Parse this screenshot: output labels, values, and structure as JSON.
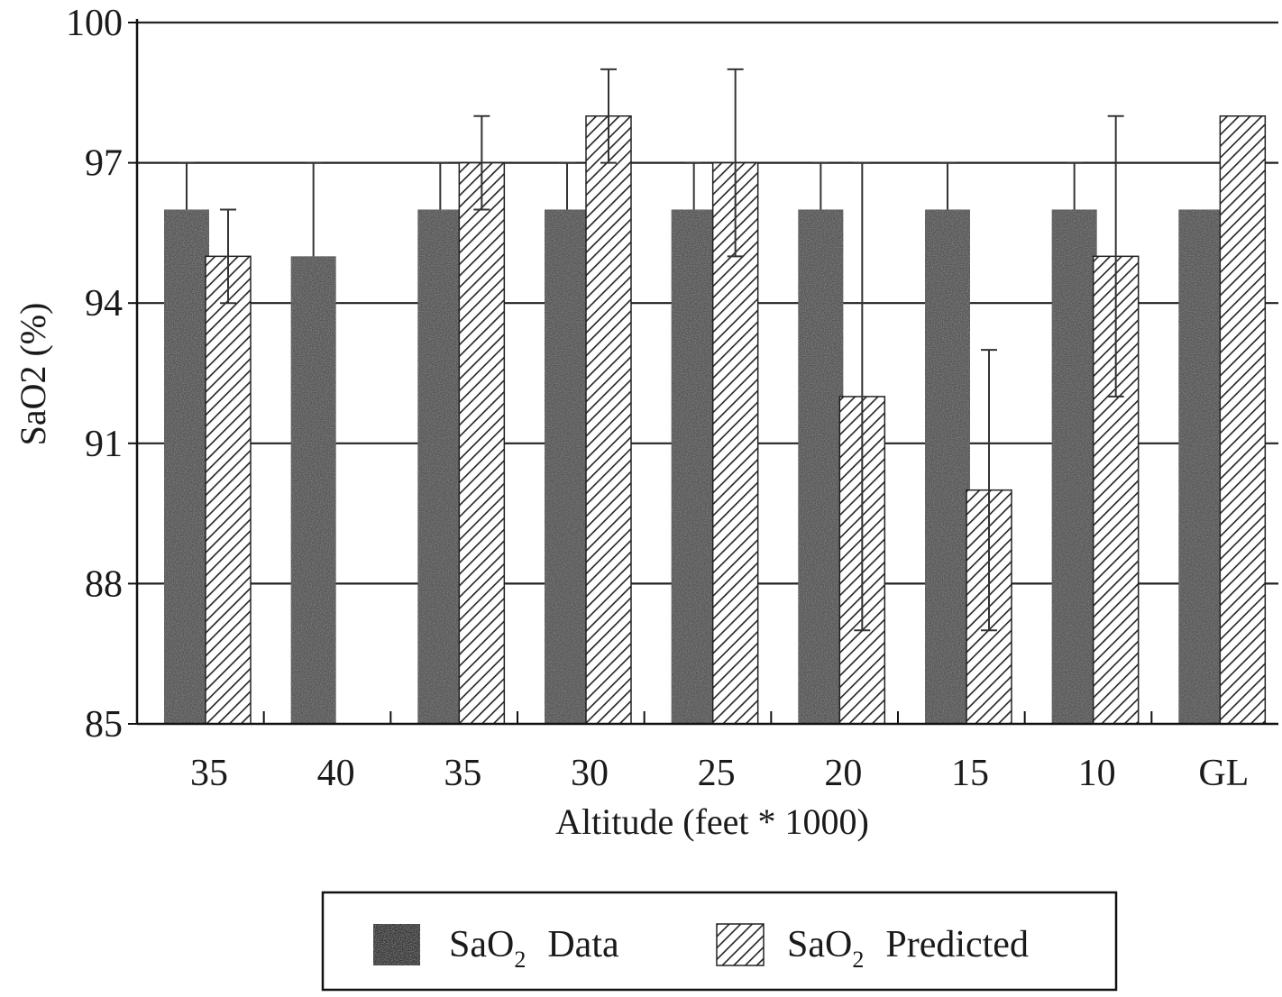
{
  "chart_data": {
    "type": "bar",
    "title": "",
    "xlabel": "Altitude (feet * 1000)",
    "ylabel": "SaO2 (%)",
    "ylim": [
      85,
      100
    ],
    "yticks": [
      "85",
      "88",
      "91",
      "94",
      "97",
      "100"
    ],
    "grid": "horizontal",
    "categories": [
      "35",
      "40",
      "35",
      "30",
      "25",
      "20",
      "15",
      "10",
      "GL"
    ],
    "series": [
      {
        "name": "SaO2 Data",
        "legend_parts": [
          "SaO",
          "2",
          "Data"
        ],
        "pattern": "stipple",
        "values": [
          96,
          95,
          96,
          96,
          96,
          96,
          96,
          96,
          96
        ],
        "error_upper": [
          97,
          97,
          97,
          97,
          97,
          97,
          97,
          97,
          null
        ]
      },
      {
        "name": "SaO2 Predicted",
        "legend_parts": [
          "SaO",
          "2",
          "Predicted"
        ],
        "pattern": "hatch",
        "values": [
          95,
          null,
          97,
          98,
          97,
          92,
          90,
          95,
          98
        ],
        "error_upper": [
          96,
          null,
          98,
          99,
          99,
          97,
          93,
          98,
          null
        ],
        "error_lower": [
          94,
          null,
          96,
          97,
          95,
          87,
          87,
          92,
          null
        ]
      }
    ],
    "legend_position": "bottom-center",
    "colors": {
      "data_fill": "#555555",
      "hatch": "#222222",
      "grid": "#222222",
      "background": "#ffffff"
    }
  }
}
